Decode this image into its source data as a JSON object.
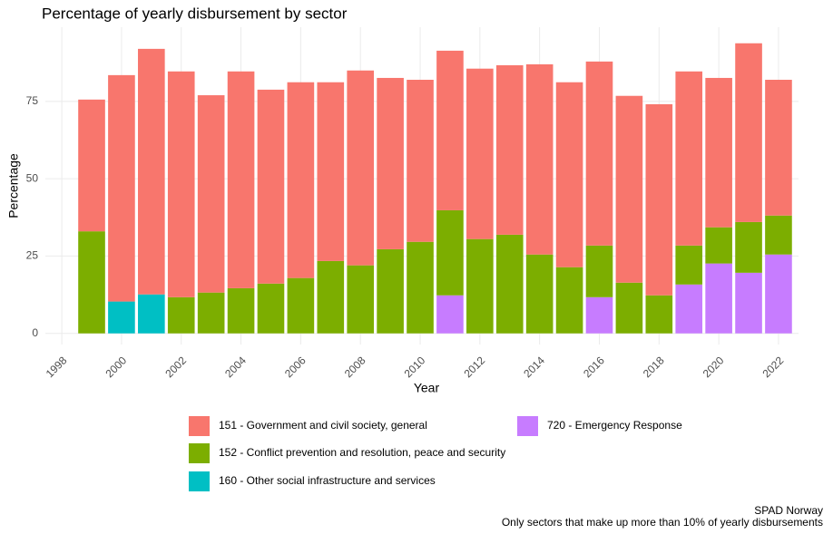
{
  "chart_data": {
    "type": "stacked-bar",
    "title": "Percentage of yearly disbursement by sector",
    "x_label": "Year",
    "y_label": "Percentage",
    "x": [
      1999,
      2000,
      2001,
      2002,
      2003,
      2004,
      2005,
      2006,
      2007,
      2008,
      2009,
      2010,
      2011,
      2012,
      2013,
      2014,
      2015,
      2016,
      2017,
      2018,
      2019,
      2020,
      2021,
      2022
    ],
    "series": [
      {
        "name": "151 - Government and civil society, general",
        "color": "#f8766d",
        "values": [
          42.6,
          73.2,
          79.4,
          73,
          63.8,
          70.1,
          62.7,
          63.3,
          57.8,
          63,
          55.4,
          52.4,
          51.6,
          55.1,
          54.8,
          61.5,
          59.8,
          59.5,
          60.4,
          61.8,
          56.3,
          48.3,
          57.8,
          43.9
        ]
      },
      {
        "name": "152 - Conflict prevention and resolution, peace and security",
        "color": "#7cae00",
        "values": [
          33,
          null,
          null,
          11.7,
          13.2,
          14.6,
          16.1,
          17.9,
          23.4,
          22,
          27.2,
          29.6,
          27.5,
          30.5,
          31.9,
          25.5,
          21.4,
          16.7,
          16.4,
          12.3,
          12.6,
          11.7,
          16.4,
          12.6
        ]
      },
      {
        "name": "160 - Other social infrastructure and services",
        "color": "#00bfc4",
        "values": [
          null,
          10.3,
          12.6,
          null,
          null,
          null,
          null,
          null,
          null,
          null,
          null,
          null,
          null,
          null,
          null,
          null,
          null,
          null,
          null,
          null,
          null,
          null,
          null,
          null
        ]
      },
      {
        "name": "720 - Emergency Response",
        "color": "#c77cff",
        "values": [
          null,
          null,
          null,
          null,
          null,
          null,
          null,
          null,
          null,
          null,
          null,
          null,
          12.3,
          null,
          null,
          null,
          null,
          11.7,
          null,
          null,
          15.8,
          22.6,
          19.6,
          25.5
        ]
      }
    ],
    "xlim": [
      1997.45,
      2022.67
    ],
    "xticks": [
      1998,
      2000,
      2002,
      2004,
      2006,
      2008,
      2010,
      2012,
      2014,
      2016,
      2018,
      2020,
      2022
    ],
    "ylim": [
      -3.6,
      99
    ],
    "yticks": [
      0,
      25,
      50,
      75
    ],
    "grid": true,
    "caption": [
      "SPAD Norway",
      "Only sectors that make up more than 10% of yearly disbursements"
    ]
  }
}
